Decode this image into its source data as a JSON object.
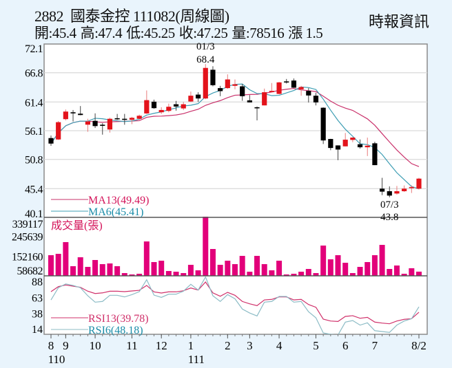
{
  "header": {
    "code": "2882",
    "name": "國泰金控",
    "period": "111082(周線圖)",
    "source": "時報資訊",
    "stats": {
      "open": "開:45.4",
      "high": "高:47.4",
      "low": "低:45.25",
      "close": "收:47.25",
      "volume": "量:78516",
      "change": "漲 1.5"
    }
  },
  "chart_data": [
    {
      "type": "candlestick",
      "panel": "price",
      "yticks": [
        "72.1",
        "66.8",
        "61.4",
        "56.1",
        "50.8",
        "45.4",
        "40.1"
      ],
      "ylim": [
        40.1,
        72.1
      ],
      "grid": true,
      "colors": {
        "up": "#e3131b",
        "down": "#000000",
        "ma13": "#c9306a",
        "ma6": "#3d9db3"
      },
      "ohlc": [
        [
          54.74,
          55.21,
          53.3,
          53.72
        ],
        [
          54.48,
          57.88,
          54.4,
          57.67
        ],
        [
          58.23,
          60.01,
          58.0,
          59.63
        ],
        [
          59.5,
          59.92,
          57.8,
          59.32
        ],
        [
          59.24,
          60.65,
          58.95,
          58.99
        ],
        [
          57.21,
          58.3,
          55.9,
          57.8
        ],
        [
          57.92,
          59.3,
          56.6,
          56.95
        ],
        [
          57.2,
          57.5,
          55.37,
          57.15
        ],
        [
          56.32,
          58.5,
          55.75,
          58.3
        ],
        [
          58.4,
          59.2,
          58.1,
          58.3
        ],
        [
          58.3,
          59.2,
          57.2,
          58.2
        ],
        [
          58.11,
          58.65,
          57.3,
          58.48
        ],
        [
          58.3,
          59.07,
          58.2,
          58.86
        ],
        [
          59.28,
          63.53,
          59.2,
          61.74
        ],
        [
          61.45,
          61.83,
          60.14,
          60.26
        ],
        [
          59.5,
          60.43,
          59.19,
          59.92
        ],
        [
          59.75,
          61.1,
          59.5,
          60.52
        ],
        [
          60.98,
          61.6,
          59.8,
          60.56
        ],
        [
          60.21,
          61.41,
          59.9,
          60.98
        ],
        [
          61.49,
          63.32,
          61.41,
          62.56
        ],
        [
          62.76,
          63.2,
          61.41,
          62.05
        ],
        [
          62.05,
          68.4,
          61.92,
          67.69
        ],
        [
          67.35,
          68.0,
          64.29,
          64.5
        ],
        [
          63.96,
          64.38,
          62.47,
          63.4
        ],
        [
          63.96,
          66.5,
          63.83,
          65.56
        ],
        [
          64.38,
          65.56,
          63.74,
          64.67
        ],
        [
          64.29,
          64.72,
          61.62,
          62.47
        ],
        [
          61.7,
          62.68,
          61.32,
          61.32
        ],
        [
          60.43,
          60.56,
          58.0,
          60.33
        ],
        [
          60.77,
          63.87,
          60.77,
          63.2
        ],
        [
          63.23,
          64.9,
          63.2,
          63.45
        ],
        [
          62.89,
          65.1,
          62.8,
          65.02
        ],
        [
          65.2,
          65.65,
          64.8,
          65.1
        ],
        [
          65.36,
          65.74,
          64.0,
          64.04
        ],
        [
          63.74,
          64.38,
          62.56,
          64.16
        ],
        [
          63.45,
          63.96,
          61.3,
          62.6
        ],
        [
          62.56,
          63.1,
          60.77,
          61.32
        ],
        [
          60.34,
          60.4,
          53.64,
          54.3
        ],
        [
          54.57,
          54.6,
          52.5,
          52.91
        ],
        [
          53.38,
          53.4,
          50.66,
          52.62
        ],
        [
          53.21,
          55.68,
          53.2,
          54.44
        ],
        [
          54.4,
          54.9,
          53.97,
          54.82
        ],
        [
          53.6,
          54.48,
          52.79,
          53.04
        ],
        [
          53.04,
          54.82,
          51.42,
          53.33
        ],
        [
          53.77,
          54.06,
          49.74,
          49.74
        ],
        [
          45.4,
          47.4,
          44.2,
          44.85
        ],
        [
          44.93,
          45.82,
          43.8,
          44.12
        ],
        [
          44.5,
          45.9,
          44.3,
          44.93
        ],
        [
          44.93,
          45.99,
          44.8,
          45.4
        ],
        [
          45.5,
          46.0,
          44.6,
          45.7
        ],
        [
          45.4,
          47.4,
          45.25,
          47.25
        ]
      ],
      "legend": [
        {
          "label": "MA13(49.49)",
          "period": 13,
          "color": "#c9306a",
          "text_color": "#d4145a"
        },
        {
          "label": "MA6(45.41)",
          "period": 6,
          "color": "#3d9db3",
          "text_color": "#1a8ca8"
        }
      ],
      "annotations": [
        {
          "week": 21,
          "date": "01/3",
          "value": "68.4",
          "position": "above"
        },
        {
          "week": 46,
          "date": "07/3",
          "value": "43.8",
          "position": "below"
        }
      ]
    },
    {
      "type": "bar",
      "panel": "volume",
      "title": "成交量(張)",
      "yticks": [
        "339117",
        "245639",
        "152160",
        "58682"
      ],
      "ylim": [
        58682,
        339117
      ],
      "color": "#e2007a",
      "values": [
        156500,
        163000,
        218500,
        104300,
        146700,
        101100,
        133700,
        114100,
        117400,
        104300,
        71700,
        65200,
        68500,
        221700,
        123900,
        130400,
        81500,
        78200,
        71700,
        110900,
        84800,
        339117,
        185900,
        110900,
        130400,
        114100,
        153300,
        78200,
        153300,
        114100,
        84800,
        130400,
        65200,
        68500,
        78200,
        91300,
        71700,
        202200,
        137000,
        156500,
        120600,
        71700,
        101100,
        123900,
        156500,
        205400,
        91300,
        107600,
        68500,
        94600,
        78516
      ]
    },
    {
      "type": "line",
      "panel": "rsi",
      "yticks": [
        "88",
        "63",
        "38",
        "14"
      ],
      "ylim": [
        5,
        97
      ],
      "series": [
        {
          "name": "RSI13(39.78)",
          "color": "#d0306a",
          "values": [
            71.9,
            79.7,
            82.3,
            80.5,
            78.7,
            72.6,
            69,
            70,
            72.6,
            72.6,
            71.9,
            73,
            74,
            81.6,
            71.6,
            69.8,
            71.6,
            71.6,
            73.3,
            77.6,
            74.4,
            86.9,
            70,
            64.7,
            70.8,
            66.2,
            56.6,
            52.9,
            50.1,
            59,
            59.8,
            63.7,
            63.7,
            59,
            59.8,
            51.8,
            47.5,
            29,
            26.1,
            25.4,
            33.3,
            34.4,
            30.4,
            31.8,
            24.4,
            22.9,
            21.8,
            26.1,
            28.7,
            29.7,
            39.78
          ]
        },
        {
          "name": "RSI6(48.18)",
          "color": "#8cbcc6",
          "text_color": "#1a8ca8",
          "values": [
            59,
            78,
            84,
            81.6,
            78,
            65.5,
            55.5,
            56.6,
            66.2,
            66.2,
            63.7,
            67.3,
            71.9,
            90.5,
            66.5,
            63,
            68,
            68,
            72.6,
            83.4,
            74.4,
            94.8,
            65.5,
            56.6,
            67.3,
            60.8,
            44.8,
            38.6,
            34,
            55.5,
            56.6,
            64.4,
            64.4,
            55.5,
            56.6,
            40.5,
            31.1,
            7.5,
            5.4,
            4.3,
            24.4,
            26.8,
            19.7,
            23.3,
            11,
            9.7,
            8.3,
            19.7,
            26.1,
            29.7,
            48.18
          ]
        }
      ]
    }
  ],
  "x_axis": {
    "months": [
      {
        "label": "8",
        "week": 0
      },
      {
        "label": "9",
        "week": 2
      },
      {
        "label": "10",
        "week": 6
      },
      {
        "label": "11",
        "week": 11
      },
      {
        "label": "12",
        "week": 15
      },
      {
        "label": "1",
        "week": 19
      },
      {
        "label": "2",
        "week": 24
      },
      {
        "label": "3",
        "week": 27
      },
      {
        "label": "4",
        "week": 31
      },
      {
        "label": "5",
        "week": 36
      },
      {
        "label": "6",
        "week": 40
      },
      {
        "label": "7",
        "week": 44
      },
      {
        "label": "8/2",
        "week": 50
      }
    ],
    "years": [
      {
        "label": "110",
        "week": 0
      },
      {
        "label": "111",
        "week": 19
      }
    ]
  }
}
